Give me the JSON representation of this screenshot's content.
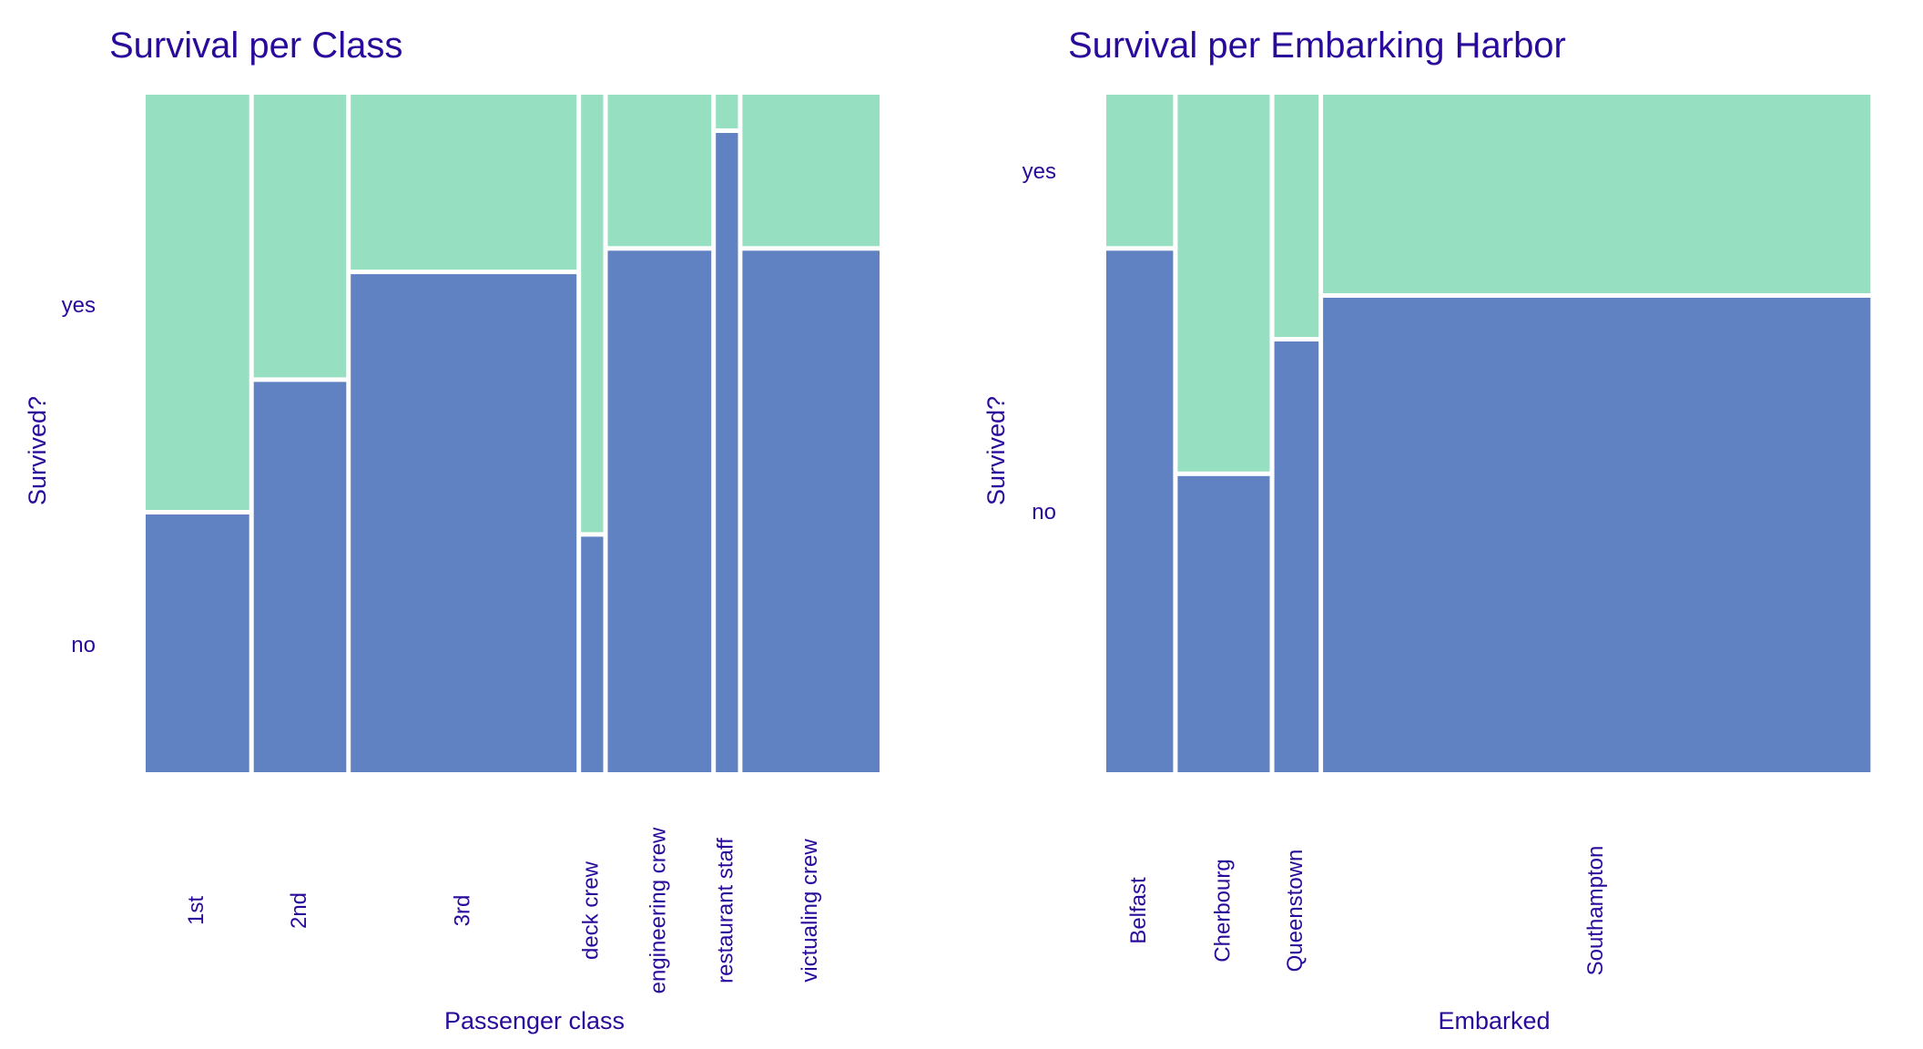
{
  "chart_data": [
    {
      "type": "mosaic",
      "title": "Survival  per Class",
      "xlabel": "Passenger class",
      "ylabel": "Survived?",
      "categories": [
        "1st",
        "2nd",
        "3rd",
        "deck crew",
        "engineering crew",
        "restaurant staff",
        "victualing crew"
      ],
      "x_proportions": [
        0.1378,
        0.1231,
        0.3006,
        0.0294,
        0.1378,
        0.0294,
        0.1826
      ],
      "y_levels": [
        "no",
        "yes"
      ],
      "no_share": [
        0.383,
        0.58,
        0.74,
        0.35,
        0.775,
        0.95,
        0.775
      ],
      "colors": {
        "no": "#6082c3",
        "yes": "#97dfc1"
      }
    },
    {
      "type": "mosaic",
      "title": "Survival per Embarking Harbor",
      "xlabel": "Embarked",
      "ylabel": "Survived?",
      "categories": [
        "Belfast",
        "Cherbourg",
        "Queenstown",
        "Southampton"
      ],
      "x_proportions": [
        0.0874,
        0.1204,
        0.0578,
        0.7157
      ],
      "y_levels": [
        "no",
        "yes"
      ],
      "no_share": [
        0.775,
        0.44,
        0.64,
        0.705
      ],
      "colors": {
        "no": "#6082c3",
        "yes": "#97dfc1"
      }
    }
  ]
}
